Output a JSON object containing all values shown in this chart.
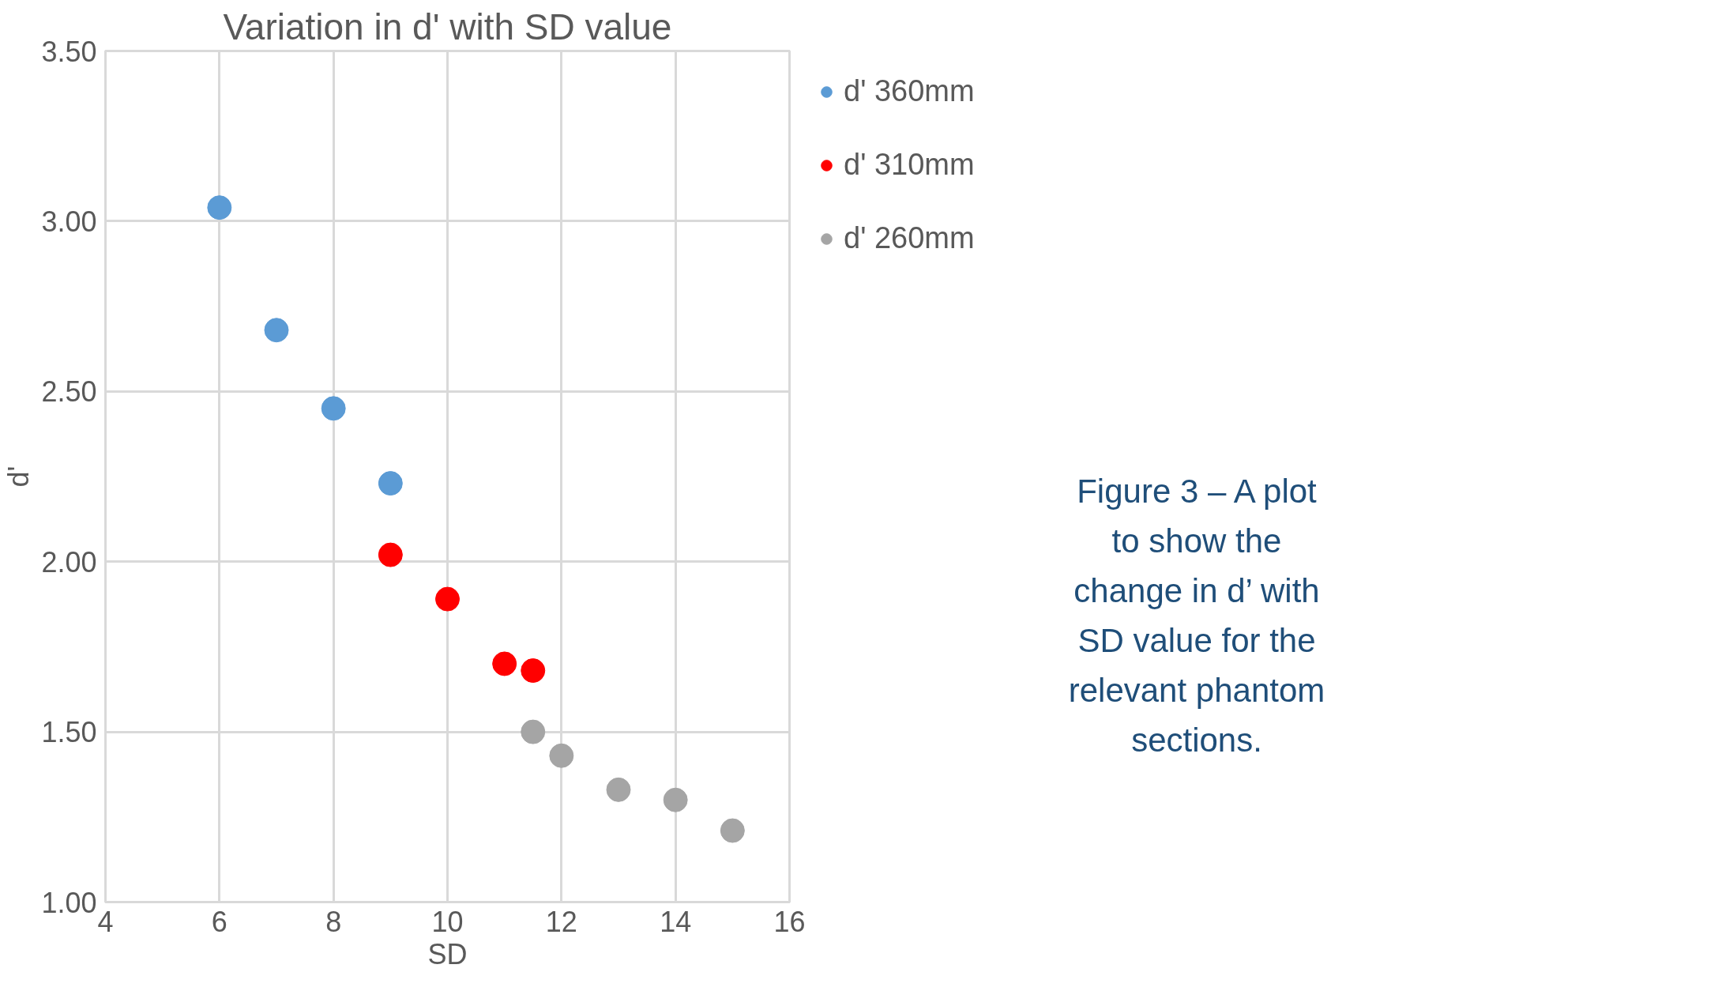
{
  "chart_data": {
    "type": "scatter",
    "title": "Variation in d' with SD value",
    "xlabel": "SD",
    "ylabel": "d'",
    "xlim": [
      4,
      16
    ],
    "xticks": [
      4,
      6,
      8,
      10,
      12,
      14,
      16
    ],
    "ylim": [
      1.0,
      3.5
    ],
    "yticks": [
      {
        "value": 1.0,
        "label": "1.00"
      },
      {
        "value": 1.5,
        "label": "1.50"
      },
      {
        "value": 2.0,
        "label": "2.00"
      },
      {
        "value": 2.5,
        "label": "2.50"
      },
      {
        "value": 3.0,
        "label": "3.00"
      },
      {
        "value": 3.5,
        "label": "3.50"
      }
    ],
    "grid": true,
    "legend": "right",
    "marker": "circle",
    "series": [
      {
        "name": "d' 360mm",
        "color": "#5b9bd5",
        "x": [
          6,
          7,
          8,
          9
        ],
        "values": [
          3.04,
          2.68,
          2.45,
          2.23
        ]
      },
      {
        "name": "d' 310mm",
        "color": "#ff0000",
        "x": [
          9,
          10,
          11,
          11.5
        ],
        "values": [
          2.02,
          1.89,
          1.7,
          1.68
        ]
      },
      {
        "name": "d' 260mm",
        "color": "#a5a5a5",
        "x": [
          11.5,
          12,
          13,
          14,
          15
        ],
        "values": [
          1.5,
          1.43,
          1.33,
          1.3,
          1.21
        ]
      }
    ],
    "annotations": [
      "Figure 3 – A plot to show the change in d’ with SD value for the relevant phantom sections."
    ]
  }
}
